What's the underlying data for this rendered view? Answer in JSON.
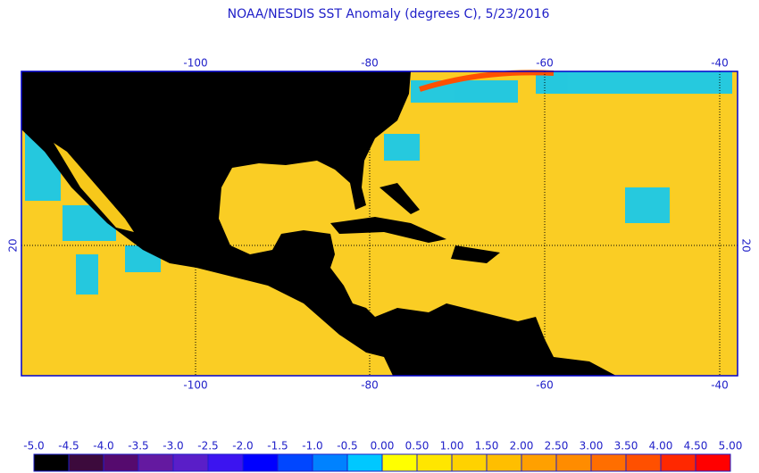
{
  "header": {
    "title": "NOAA/NESDIS SST Anomaly (degrees C), 5/23/2016"
  },
  "map": {
    "top_ticks": [
      "-100",
      "-80",
      "-60",
      "-40"
    ],
    "bottom_ticks": [
      "-100",
      "-80",
      "-60",
      "-40"
    ],
    "left_ticks": [
      "20"
    ],
    "right_ticks": [
      "20"
    ]
  },
  "legend": {
    "labels": [
      "-5.0",
      "-4.5",
      "-4.0",
      "-3.5",
      "-3.0",
      "-2.5",
      "-2.0",
      "-1.5",
      "-1.0",
      "-0.5",
      "0.00",
      "0.50",
      "1.00",
      "1.50",
      "2.00",
      "2.50",
      "3.00",
      "3.50",
      "4.00",
      "4.50",
      "5.00"
    ],
    "colors": [
      "#000000",
      "#3c0a3c",
      "#550a6e",
      "#6419a0",
      "#5a1ec8",
      "#3c14f0",
      "#0000ff",
      "#0046ff",
      "#0082ff",
      "#00c8ff",
      "#ffff00",
      "#ffe600",
      "#ffd200",
      "#ffbe00",
      "#ffa000",
      "#ff8c00",
      "#ff6e00",
      "#ff5000",
      "#ff2800",
      "#ff0000"
    ]
  }
}
